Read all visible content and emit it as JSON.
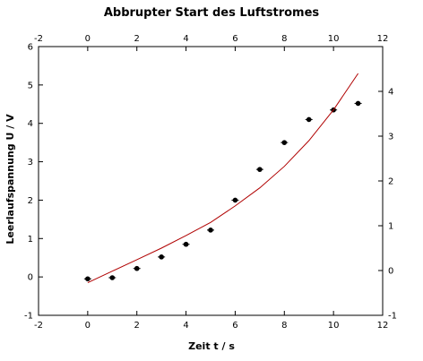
{
  "chart_data": {
    "type": "scatter",
    "title": "Abbrupter Start des Luftstromes",
    "xlabel": "Zeit t / s",
    "ylabel": "Leerlaufspannung U / V",
    "xlim": [
      -2,
      12
    ],
    "ylim": [
      -1,
      6
    ],
    "right_ylim": [
      -1,
      5
    ],
    "x_ticks": [
      -2,
      0,
      2,
      4,
      6,
      8,
      10,
      12
    ],
    "y_ticks": [
      -1,
      0,
      1,
      2,
      3,
      4,
      5,
      6
    ],
    "right_y_ticks": [
      -1,
      0,
      1,
      2,
      3,
      4
    ],
    "grid": false,
    "series": [
      {
        "type": "scatter",
        "color": "#000000",
        "x": [
          0,
          1,
          2,
          3,
          4,
          5,
          6,
          7,
          8,
          9,
          10,
          11
        ],
        "y": [
          -0.05,
          -0.02,
          0.22,
          0.52,
          0.85,
          1.22,
          2.0,
          2.8,
          3.5,
          4.1,
          4.35,
          4.52
        ]
      },
      {
        "type": "line",
        "color": "#b00000",
        "x": [
          0,
          1,
          2,
          3,
          4,
          5,
          6,
          7,
          8,
          9,
          10,
          11
        ],
        "y": [
          -0.15,
          0.15,
          0.45,
          0.75,
          1.08,
          1.42,
          1.85,
          2.32,
          2.88,
          3.55,
          4.35,
          5.3
        ]
      }
    ]
  }
}
